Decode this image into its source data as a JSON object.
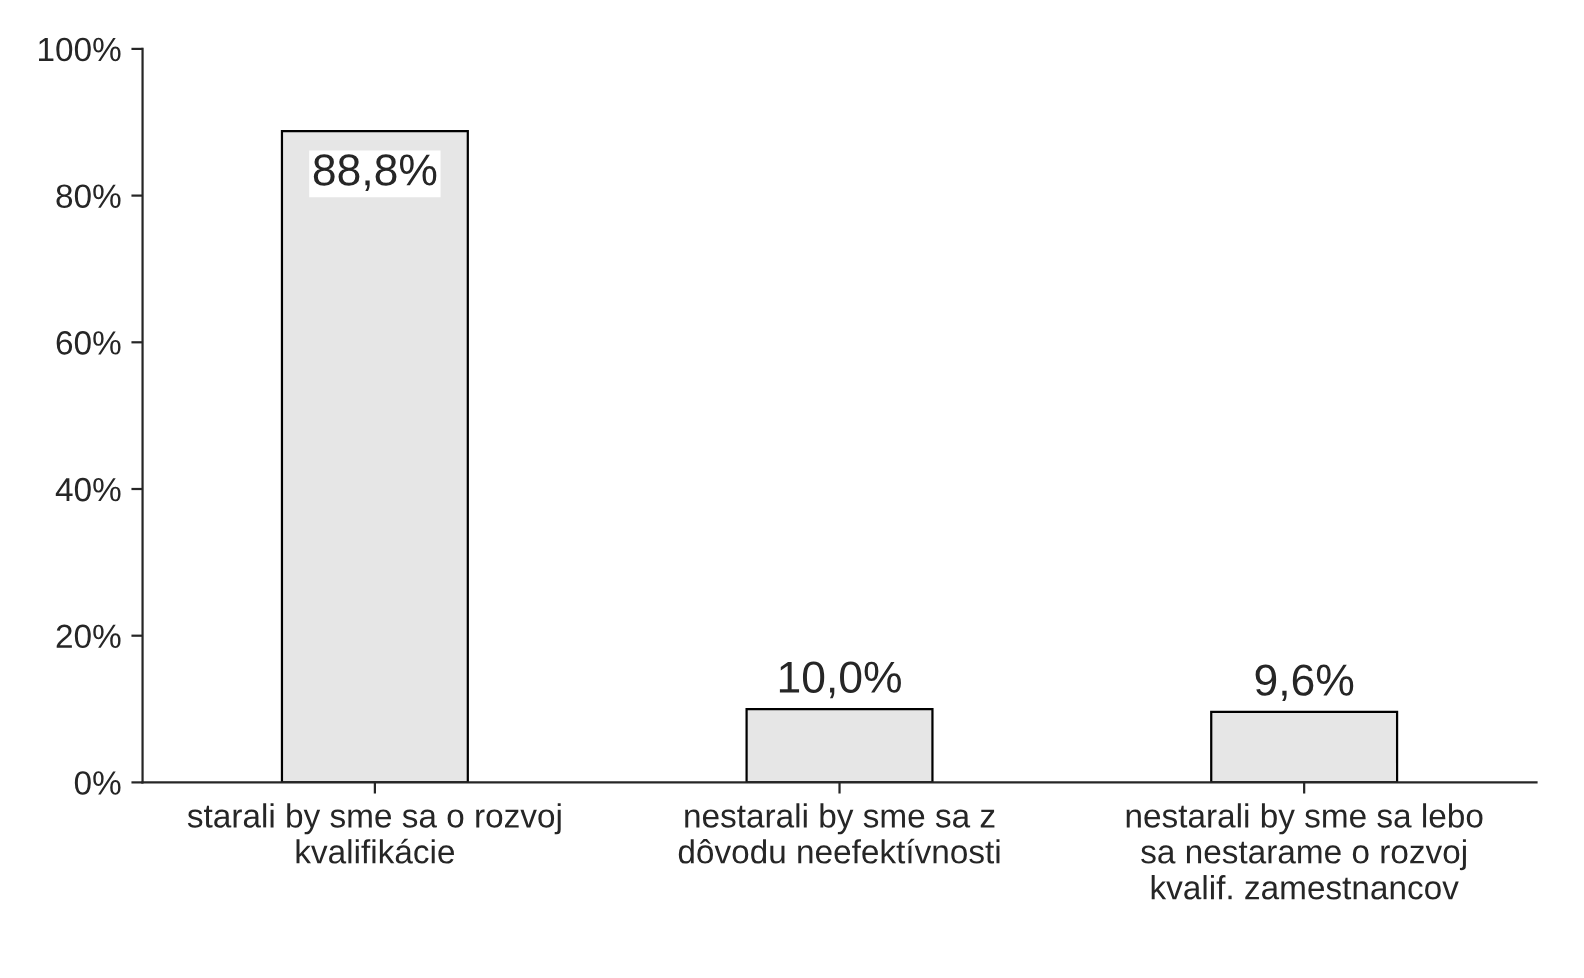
{
  "chart_data": {
    "type": "bar",
    "categories": [
      "starali by sme sa o rozvoj\nkvalifikácie",
      "nestarali by sme sa z\ndôvodu neefektívnosti",
      "nestarali by sme sa lebo\nsa nestarame o rozvoj\nkvalif. zamestnancov"
    ],
    "values": [
      88.8,
      10.0,
      9.6
    ],
    "value_labels": [
      "88,8%",
      "10,0%",
      "9,6%"
    ],
    "color": "#e6e6e6",
    "ylim": [
      0,
      100
    ],
    "yticks": [
      {
        "value": 0,
        "label": "0%"
      },
      {
        "value": 20,
        "label": "20%"
      },
      {
        "value": 40,
        "label": "40%"
      },
      {
        "value": 60,
        "label": "60%"
      },
      {
        "value": 80,
        "label": "80%"
      },
      {
        "value": 100,
        "label": "100%"
      }
    ],
    "grid": false,
    "legend": false
  }
}
